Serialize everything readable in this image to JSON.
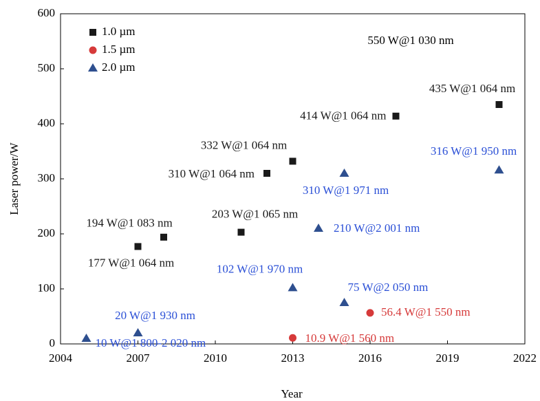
{
  "chart_data": {
    "type": "scatter",
    "x_label": "Year",
    "y_label": "Laser power/W",
    "xlim": [
      2004,
      2022
    ],
    "xticks": [
      2004,
      2007,
      2010,
      2013,
      2016,
      2019,
      2022
    ],
    "ylim": [
      0,
      600
    ],
    "yticks": [
      0,
      100,
      200,
      300,
      400,
      500,
      600
    ],
    "grid": false,
    "legend": "upper left",
    "series": [
      {
        "name": "1.0 µm",
        "color": "#1a1a1a",
        "marker": "square",
        "x": [
          2007,
          2008,
          2011,
          2012,
          2013,
          2017,
          2021
        ],
        "values": [
          177,
          194,
          203,
          310,
          332,
          414,
          435
        ],
        "value_labels": [
          "177 W@1 064 nm",
          "194 W@1 083 nm",
          "203 W@1 065 nm",
          "310 W@1 064 nm",
          "332 W@1 064 nm",
          "414 W@1 064 nm",
          "435 W@1 064 nm"
        ]
      },
      {
        "name": "1.5 µm",
        "color": "#d63a3a",
        "marker": "circle",
        "x": [
          2013,
          2016
        ],
        "values": [
          10.9,
          56.4
        ],
        "value_labels": [
          "10.9 W@1 560 nm",
          "56.4 W@1 550 nm"
        ]
      },
      {
        "name": "2.0 µm",
        "color": "#2e4f8f",
        "marker": "triangle",
        "x": [
          2005,
          2007,
          2013,
          2014,
          2015,
          2015,
          2021
        ],
        "values": [
          10,
          20,
          102,
          210,
          75,
          310,
          316
        ],
        "value_labels": [
          "10 W@1 800-2 020 nm",
          "20 W@1 930 nm",
          "102 W@1 970 nm",
          "210 W@2 001 nm",
          "75 W@2 050 nm",
          "310 W@1 971 nm",
          "316 W@1 950 nm"
        ],
        "label_color": "#2a4fd6"
      }
    ],
    "annotations": [
      "550 W@1 030 nm"
    ]
  }
}
